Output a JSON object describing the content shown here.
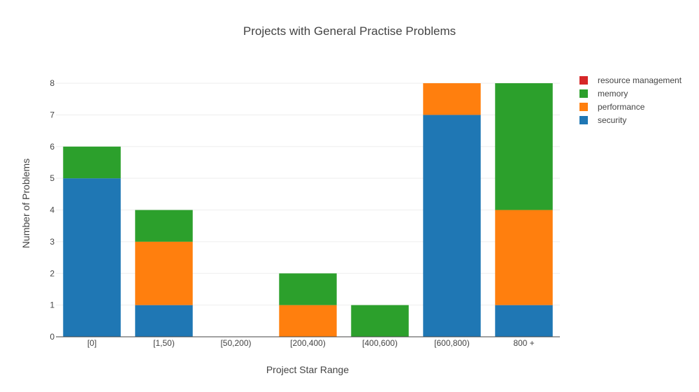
{
  "chart_data": {
    "type": "bar",
    "barmode": "stack",
    "title": "Projects with General Practise Problems",
    "xlabel": "Project Star Range",
    "ylabel": "Number of Problems",
    "categories": [
      "[0]",
      "[1,50)",
      "[50,200)",
      "[200,400)",
      "[400,600)",
      "[600,800)",
      "800 +"
    ],
    "ylim": [
      0,
      8.2
    ],
    "yticks": [
      0,
      1,
      2,
      3,
      4,
      5,
      6,
      7,
      8
    ],
    "grid": true,
    "legend_position": "top-right",
    "series": [
      {
        "name": "security",
        "color": "#1f77b4",
        "values": [
          5,
          1,
          0,
          0,
          0,
          7,
          1
        ]
      },
      {
        "name": "performance",
        "color": "#ff7f0e",
        "values": [
          0,
          2,
          0,
          1,
          0,
          1,
          3
        ]
      },
      {
        "name": "memory",
        "color": "#2ca02c",
        "values": [
          1,
          1,
          0,
          1,
          1,
          0,
          4
        ]
      },
      {
        "name": "resource management",
        "color": "#d62728",
        "values": [
          0,
          0,
          0,
          0,
          0,
          0,
          0
        ]
      }
    ]
  }
}
